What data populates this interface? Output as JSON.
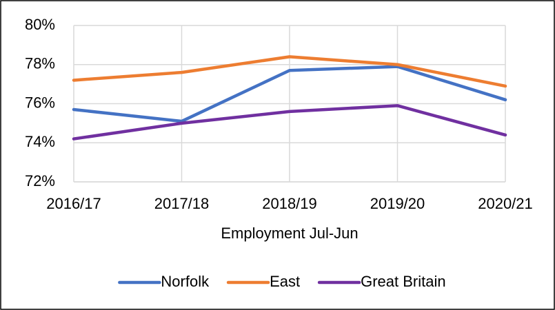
{
  "chart_data": {
    "type": "line",
    "x_label": "Employment Jul-Jun",
    "categories": [
      "2016/17",
      "2017/18",
      "2018/19",
      "2019/20",
      "2020/21"
    ],
    "series": [
      {
        "name": "Norfolk",
        "color": "#4472c4",
        "values": [
          75.7,
          75.1,
          77.7,
          77.9,
          76.2
        ]
      },
      {
        "name": "East",
        "color": "#ed7d31",
        "values": [
          77.2,
          77.6,
          78.4,
          78.0,
          76.9
        ]
      },
      {
        "name": "Great Britain",
        "color": "#7030a0",
        "values": [
          74.2,
          75.0,
          75.6,
          75.9,
          74.4
        ]
      }
    ],
    "ylim": [
      72,
      80
    ],
    "yticks": [
      {
        "value": 72,
        "label": "72%"
      },
      {
        "value": 74,
        "label": "74%"
      },
      {
        "value": 76,
        "label": "76%"
      },
      {
        "value": 78,
        "label": "78%"
      },
      {
        "value": 80,
        "label": "80%"
      }
    ],
    "grid": true,
    "legend": "bottom"
  }
}
